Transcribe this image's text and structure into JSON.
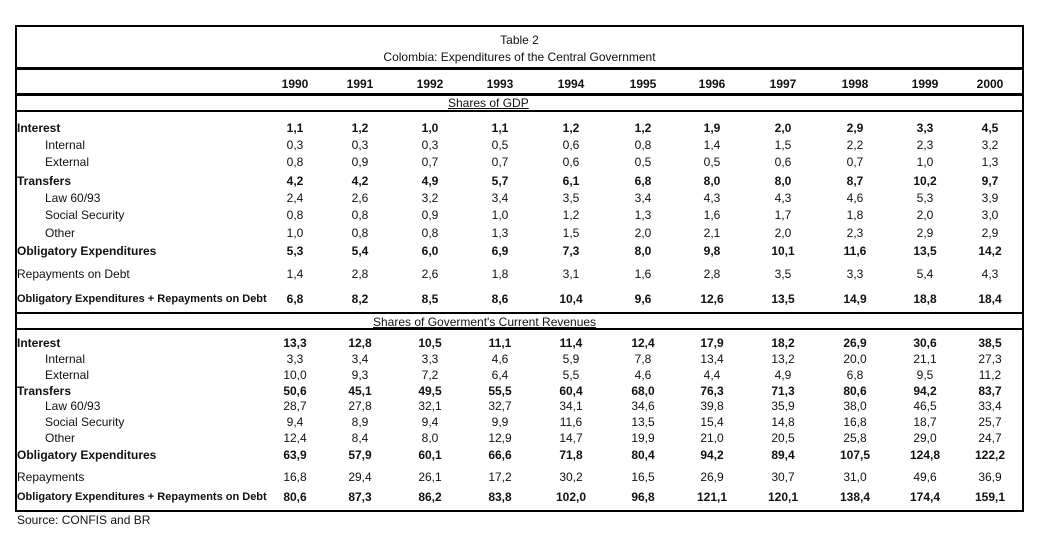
{
  "title": "Table 2",
  "subtitle": "Colombia: Expenditures of the Central Government",
  "years": [
    "1990",
    "1991",
    "1992",
    "1993",
    "1994",
    "1995",
    "1996",
    "1997",
    "1998",
    "1999",
    "2000"
  ],
  "sections": [
    {
      "heading": "Shares of GDP",
      "rows": [
        {
          "label": "Interest",
          "bold": true,
          "indent": false,
          "values": [
            "1,1",
            "1,2",
            "1,0",
            "1,1",
            "1,2",
            "1,2",
            "1,9",
            "2,0",
            "2,9",
            "3,3",
            "4,5"
          ]
        },
        {
          "label": "Internal",
          "bold": false,
          "indent": true,
          "values": [
            "0,3",
            "0,3",
            "0,3",
            "0,5",
            "0,6",
            "0,8",
            "1,4",
            "1,5",
            "2,2",
            "2,3",
            "3,2"
          ]
        },
        {
          "label": "External",
          "bold": false,
          "indent": true,
          "values": [
            "0,8",
            "0,9",
            "0,7",
            "0,7",
            "0,6",
            "0,5",
            "0,5",
            "0,6",
            "0,7",
            "1,0",
            "1,3"
          ]
        },
        {
          "label": "Transfers",
          "bold": true,
          "indent": false,
          "values": [
            "4,2",
            "4,2",
            "4,9",
            "5,7",
            "6,1",
            "6,8",
            "8,0",
            "8,0",
            "8,7",
            "10,2",
            "9,7"
          ]
        },
        {
          "label": "Law 60/93",
          "bold": false,
          "indent": true,
          "values": [
            "2,4",
            "2,6",
            "3,2",
            "3,4",
            "3,5",
            "3,4",
            "4,3",
            "4,3",
            "4,6",
            "5,3",
            "3,9"
          ]
        },
        {
          "label": "Social Security",
          "bold": false,
          "indent": true,
          "values": [
            "0,8",
            "0,8",
            "0,9",
            "1,0",
            "1,2",
            "1,3",
            "1,6",
            "1,7",
            "1,8",
            "2,0",
            "3,0"
          ]
        },
        {
          "label": "Other",
          "bold": false,
          "indent": true,
          "values": [
            "1,0",
            "0,8",
            "0,8",
            "1,3",
            "1,5",
            "2,0",
            "2,1",
            "2,0",
            "2,3",
            "2,9",
            "2,9"
          ]
        },
        {
          "label": "Obligatory Expenditures",
          "bold": true,
          "indent": false,
          "values": [
            "5,3",
            "5,4",
            "6,0",
            "6,9",
            "7,3",
            "8,0",
            "9,8",
            "10,1",
            "11,6",
            "13,5",
            "14,2"
          ]
        },
        {
          "label": "Repayments on Debt",
          "bold": false,
          "indent": false,
          "values": [
            "1,4",
            "2,8",
            "2,6",
            "1,8",
            "3,1",
            "1,6",
            "2,8",
            "3,5",
            "3,3",
            "5,4",
            "4,3"
          ]
        },
        {
          "label": "Obligatory Expenditures + Repayments on Debt",
          "bold": true,
          "indent": false,
          "small": true,
          "values": [
            "6,8",
            "8,2",
            "8,5",
            "8,6",
            "10,4",
            "9,6",
            "12,6",
            "13,5",
            "14,9",
            "18,8",
            "18,4"
          ]
        }
      ]
    },
    {
      "heading": "Shares of Goverment's Current Revenues",
      "rows": [
        {
          "label": "Interest",
          "bold": true,
          "indent": false,
          "values": [
            "13,3",
            "12,8",
            "10,5",
            "11,1",
            "11,4",
            "12,4",
            "17,9",
            "18,2",
            "26,9",
            "30,6",
            "38,5"
          ]
        },
        {
          "label": "Internal",
          "bold": false,
          "indent": true,
          "values": [
            "3,3",
            "3,4",
            "3,3",
            "4,6",
            "5,9",
            "7,8",
            "13,4",
            "13,2",
            "20,0",
            "21,1",
            "27,3"
          ]
        },
        {
          "label": "External",
          "bold": false,
          "indent": true,
          "values": [
            "10,0",
            "9,3",
            "7,2",
            "6,4",
            "5,5",
            "4,6",
            "4,4",
            "4,9",
            "6,8",
            "9,5",
            "11,2"
          ]
        },
        {
          "label": "Transfers",
          "bold": true,
          "indent": false,
          "values": [
            "50,6",
            "45,1",
            "49,5",
            "55,5",
            "60,4",
            "68,0",
            "76,3",
            "71,3",
            "80,6",
            "94,2",
            "83,7"
          ]
        },
        {
          "label": "Law 60/93",
          "bold": false,
          "indent": true,
          "values": [
            "28,7",
            "27,8",
            "32,1",
            "32,7",
            "34,1",
            "34,6",
            "39,8",
            "35,9",
            "38,0",
            "46,5",
            "33,4"
          ]
        },
        {
          "label": "Social Security",
          "bold": false,
          "indent": true,
          "values": [
            "9,4",
            "8,9",
            "9,4",
            "9,9",
            "11,6",
            "13,5",
            "15,4",
            "14,8",
            "16,8",
            "18,7",
            "25,7"
          ]
        },
        {
          "label": "Other",
          "bold": false,
          "indent": true,
          "values": [
            "12,4",
            "8,4",
            "8,0",
            "12,9",
            "14,7",
            "19,9",
            "21,0",
            "20,5",
            "25,8",
            "29,0",
            "24,7"
          ]
        },
        {
          "label": "Obligatory Expenditures",
          "bold": true,
          "indent": false,
          "values": [
            "63,9",
            "57,9",
            "60,1",
            "66,6",
            "71,8",
            "80,4",
            "94,2",
            "89,4",
            "107,5",
            "124,8",
            "122,2"
          ]
        },
        {
          "label": "Repayments",
          "bold": false,
          "indent": false,
          "values": [
            "16,8",
            "29,4",
            "26,1",
            "17,2",
            "30,2",
            "16,5",
            "26,9",
            "30,7",
            "31,0",
            "49,6",
            "36,9"
          ]
        },
        {
          "label": "Obligatory Expenditures + Repayments on Debt",
          "bold": true,
          "indent": false,
          "small": true,
          "values": [
            "80,6",
            "87,3",
            "86,2",
            "83,8",
            "102,0",
            "96,8",
            "121,1",
            "120,1",
            "138,4",
            "174,4",
            "159,1"
          ]
        }
      ]
    }
  ],
  "source": "Source: CONFIS and BR"
}
